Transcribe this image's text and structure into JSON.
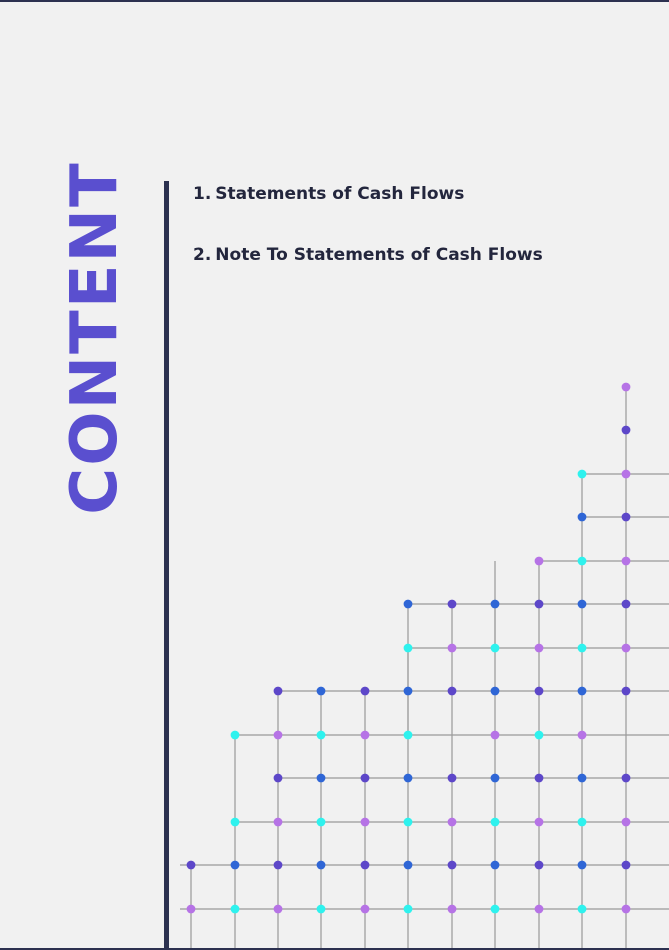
{
  "title": "CONTENT",
  "toc": [
    {
      "number": "1.",
      "label": "Statements of Cash Flows"
    },
    {
      "number": "2.",
      "label": "Note To Statements of Cash Flows"
    }
  ],
  "colors": {
    "accent": "#5a4fcf",
    "dark": "#2c3150",
    "text": "#23263d",
    "background": "#f1f1f1",
    "dot_cyan": "#2ef2ee",
    "dot_lavender": "#b673e6",
    "dot_blue": "#2f66d6",
    "dot_indigo": "#5d47c9"
  }
}
